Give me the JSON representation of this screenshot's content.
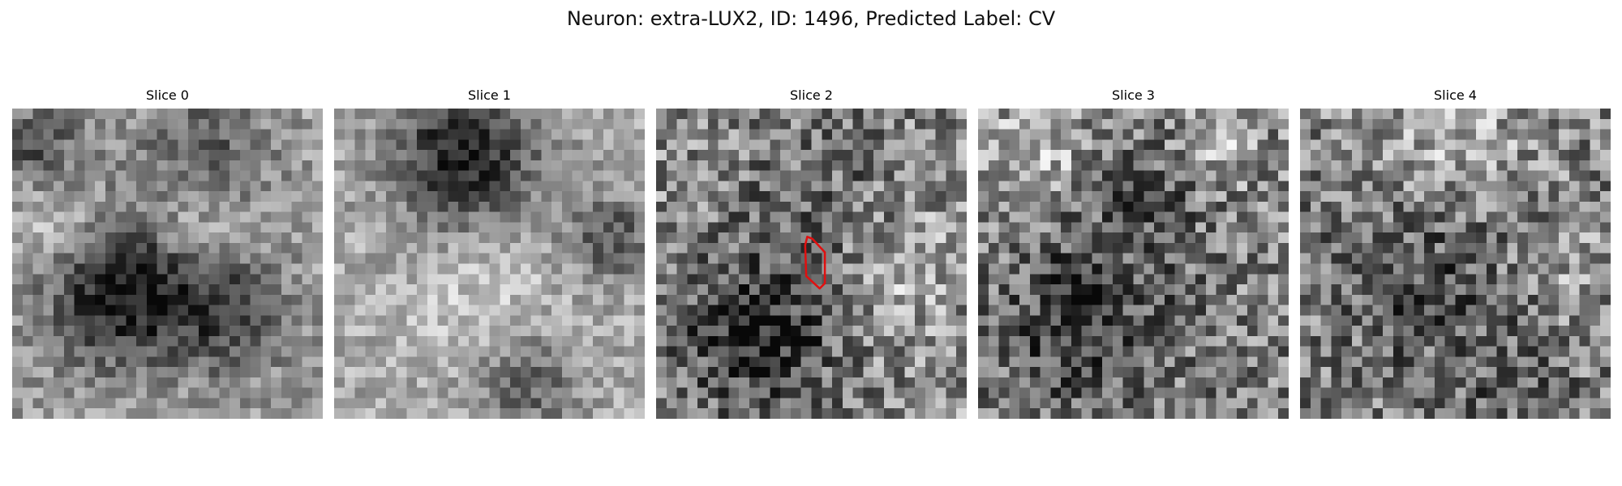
{
  "figure": {
    "title": "Neuron: extra-LUX2, ID: 1496, Predicted Label: CV"
  },
  "panels": [
    {
      "title": "Slice 0"
    },
    {
      "title": "Slice 1"
    },
    {
      "title": "Slice 2"
    },
    {
      "title": "Slice 3"
    },
    {
      "title": "Slice 4"
    }
  ],
  "colors": {
    "roi_outline": "#e01010"
  }
}
